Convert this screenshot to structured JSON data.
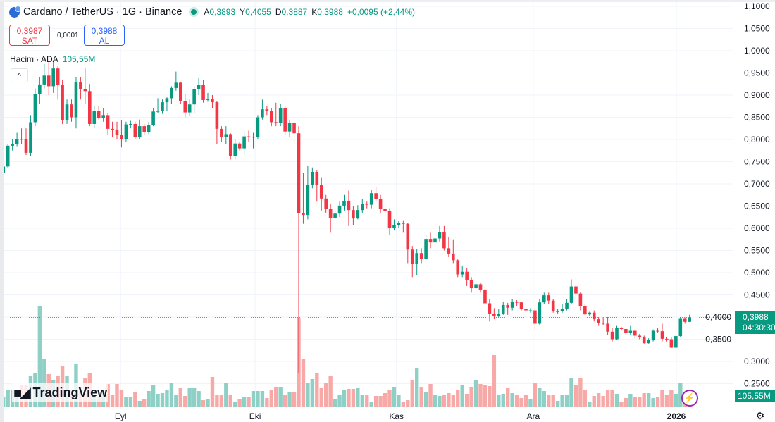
{
  "header": {
    "title": "Cardano / TetherUS · 1G · Binance",
    "ohlc": [
      {
        "label": "A",
        "value": "0,3893"
      },
      {
        "label": "Y",
        "value": "0,4055"
      },
      {
        "label": "D",
        "value": "0,3887"
      },
      {
        "label": "K",
        "value": "0,3988"
      }
    ],
    "change": "+0,0095 (+2,44%)"
  },
  "trade": {
    "sell_price": "0,3987",
    "sell_label": "SAT",
    "spread": "0,0001",
    "buy_price": "0,3988",
    "buy_label": "AL"
  },
  "volume_legend": {
    "label": "Hacim · ADA",
    "value": "105,55M"
  },
  "collapse_icon": "^",
  "brand": {
    "mark": "TV",
    "name": "TradingView"
  },
  "last_price_tag": {
    "price": "0,3988",
    "countdown": "04:30:30"
  },
  "volume_tag": "105,55M",
  "colors": {
    "up": "#089981",
    "down": "#f23645",
    "up_volume": "#8fd0c6",
    "down_volume": "#f7a9a7",
    "grid": "#f0f3fa"
  },
  "icons": {
    "lightning": "lightning-icon",
    "settings": "gear-icon",
    "logo": "cardano-logo-icon"
  },
  "chart_data": {
    "type": "candlestick",
    "title": "Cardano / TetherUS · 1G · Binance",
    "ylim": [
      0.25,
      1.1
    ],
    "y_ticks": [
      "1,1000",
      "1,0500",
      "1,0000",
      "0,9500",
      "0,9000",
      "0,8500",
      "0,8000",
      "0,7500",
      "0,7000",
      "0,6500",
      "0,6000",
      "0,5500",
      "0,5000",
      "0,4500",
      "0,4000",
      "0,3500",
      "0,3000",
      "0,2500"
    ],
    "y_tick_values": [
      1.1,
      1.05,
      1.0,
      0.95,
      0.9,
      0.85,
      0.8,
      0.75,
      0.7,
      0.65,
      0.6,
      0.55,
      0.5,
      0.45,
      0.4,
      0.35,
      0.3,
      0.25
    ],
    "x_ticks": [
      {
        "label": "Eyl",
        "candle": 26.8
      },
      {
        "label": "Eki",
        "candle": 56.4
      },
      {
        "label": "Kas",
        "candle": 87.5
      },
      {
        "label": "Ara",
        "candle": 117.6
      },
      {
        "label": "2026",
        "candle": 149.1,
        "bold": true
      }
    ],
    "last_price": 0.3988,
    "grid": true,
    "candles_ohlc": [
      [
        0.725,
        0.745,
        0.718,
        0.739
      ],
      [
        0.739,
        0.79,
        0.735,
        0.786
      ],
      [
        0.786,
        0.8,
        0.775,
        0.789
      ],
      [
        0.789,
        0.815,
        0.785,
        0.801
      ],
      [
        0.801,
        0.825,
        0.79,
        0.8
      ],
      [
        0.8,
        0.825,
        0.765,
        0.77
      ],
      [
        0.77,
        0.855,
        0.762,
        0.839
      ],
      [
        0.839,
        0.915,
        0.83,
        0.903
      ],
      [
        0.903,
        0.94,
        0.88,
        0.924
      ],
      [
        0.924,
        0.97,
        0.915,
        0.944
      ],
      [
        0.944,
        0.975,
        0.9,
        0.92
      ],
      [
        0.92,
        0.975,
        0.905,
        0.96
      ],
      [
        0.96,
        0.965,
        0.89,
        0.923
      ],
      [
        0.923,
        0.935,
        0.835,
        0.844
      ],
      [
        0.844,
        0.89,
        0.835,
        0.879
      ],
      [
        0.879,
        0.89,
        0.84,
        0.85
      ],
      [
        0.85,
        0.94,
        0.825,
        0.93
      ],
      [
        0.93,
        0.94,
        0.89,
        0.913
      ],
      [
        0.913,
        0.96,
        0.88,
        0.909
      ],
      [
        0.909,
        0.925,
        0.83,
        0.835
      ],
      [
        0.835,
        0.875,
        0.826,
        0.865
      ],
      [
        0.865,
        0.875,
        0.845,
        0.849
      ],
      [
        0.849,
        0.87,
        0.84,
        0.855
      ],
      [
        0.855,
        0.86,
        0.81,
        0.824
      ],
      [
        0.824,
        0.84,
        0.805,
        0.821
      ],
      [
        0.821,
        0.84,
        0.8,
        0.81
      ],
      [
        0.81,
        0.843,
        0.782,
        0.8
      ],
      [
        0.8,
        0.84,
        0.795,
        0.834
      ],
      [
        0.834,
        0.842,
        0.825,
        0.835
      ],
      [
        0.835,
        0.84,
        0.8,
        0.806
      ],
      [
        0.806,
        0.845,
        0.8,
        0.83
      ],
      [
        0.83,
        0.835,
        0.81,
        0.817
      ],
      [
        0.817,
        0.84,
        0.812,
        0.833
      ],
      [
        0.833,
        0.87,
        0.83,
        0.863
      ],
      [
        0.863,
        0.893,
        0.86,
        0.864
      ],
      [
        0.864,
        0.89,
        0.858,
        0.884
      ],
      [
        0.884,
        0.895,
        0.865,
        0.893
      ],
      [
        0.893,
        0.92,
        0.88,
        0.916
      ],
      [
        0.916,
        0.953,
        0.91,
        0.928
      ],
      [
        0.928,
        0.93,
        0.88,
        0.887
      ],
      [
        0.887,
        0.902,
        0.85,
        0.861
      ],
      [
        0.861,
        0.89,
        0.853,
        0.879
      ],
      [
        0.879,
        0.92,
        0.86,
        0.913
      ],
      [
        0.913,
        0.938,
        0.9,
        0.923
      ],
      [
        0.923,
        0.935,
        0.883,
        0.889
      ],
      [
        0.889,
        0.905,
        0.885,
        0.891
      ],
      [
        0.891,
        0.9,
        0.87,
        0.884
      ],
      [
        0.884,
        0.886,
        0.79,
        0.824
      ],
      [
        0.824,
        0.83,
        0.795,
        0.805
      ],
      [
        0.805,
        0.83,
        0.79,
        0.812
      ],
      [
        0.812,
        0.814,
        0.755,
        0.762
      ],
      [
        0.762,
        0.8,
        0.755,
        0.791
      ],
      [
        0.791,
        0.795,
        0.775,
        0.78
      ],
      [
        0.78,
        0.818,
        0.765,
        0.807
      ],
      [
        0.807,
        0.82,
        0.795,
        0.805
      ],
      [
        0.805,
        0.815,
        0.78,
        0.806
      ],
      [
        0.806,
        0.855,
        0.8,
        0.85
      ],
      [
        0.85,
        0.89,
        0.845,
        0.868
      ],
      [
        0.868,
        0.875,
        0.855,
        0.865
      ],
      [
        0.865,
        0.87,
        0.83,
        0.839
      ],
      [
        0.839,
        0.883,
        0.83,
        0.837
      ],
      [
        0.837,
        0.88,
        0.83,
        0.871
      ],
      [
        0.871,
        0.876,
        0.81,
        0.818
      ],
      [
        0.818,
        0.845,
        0.805,
        0.838
      ],
      [
        0.838,
        0.84,
        0.79,
        0.814
      ],
      [
        0.814,
        0.83,
        0.273,
        0.634
      ],
      [
        0.634,
        0.725,
        0.61,
        0.63
      ],
      [
        0.63,
        0.74,
        0.62,
        0.697
      ],
      [
        0.697,
        0.737,
        0.69,
        0.727
      ],
      [
        0.727,
        0.73,
        0.66,
        0.697
      ],
      [
        0.697,
        0.715,
        0.64,
        0.667
      ],
      [
        0.667,
        0.675,
        0.635,
        0.643
      ],
      [
        0.643,
        0.655,
        0.59,
        0.623
      ],
      [
        0.623,
        0.64,
        0.62,
        0.633
      ],
      [
        0.633,
        0.66,
        0.625,
        0.651
      ],
      [
        0.651,
        0.675,
        0.64,
        0.662
      ],
      [
        0.662,
        0.685,
        0.605,
        0.641
      ],
      [
        0.641,
        0.65,
        0.607,
        0.622
      ],
      [
        0.622,
        0.652,
        0.62,
        0.641
      ],
      [
        0.641,
        0.665,
        0.635,
        0.655
      ],
      [
        0.655,
        0.66,
        0.645,
        0.653
      ],
      [
        0.653,
        0.687,
        0.645,
        0.679
      ],
      [
        0.679,
        0.693,
        0.66,
        0.666
      ],
      [
        0.666,
        0.675,
        0.635,
        0.644
      ],
      [
        0.644,
        0.655,
        0.625,
        0.639
      ],
      [
        0.639,
        0.645,
        0.585,
        0.6
      ],
      [
        0.6,
        0.62,
        0.595,
        0.607
      ],
      [
        0.607,
        0.617,
        0.6,
        0.612
      ],
      [
        0.612,
        0.618,
        0.59,
        0.61
      ],
      [
        0.61,
        0.612,
        0.52,
        0.552
      ],
      [
        0.552,
        0.56,
        0.49,
        0.519
      ],
      [
        0.519,
        0.553,
        0.495,
        0.544
      ],
      [
        0.544,
        0.555,
        0.52,
        0.531
      ],
      [
        0.531,
        0.585,
        0.528,
        0.576
      ],
      [
        0.576,
        0.59,
        0.555,
        0.568
      ],
      [
        0.568,
        0.58,
        0.545,
        0.577
      ],
      [
        0.577,
        0.605,
        0.57,
        0.592
      ],
      [
        0.592,
        0.605,
        0.55,
        0.555
      ],
      [
        0.555,
        0.58,
        0.535,
        0.543
      ],
      [
        0.543,
        0.575,
        0.52,
        0.528
      ],
      [
        0.528,
        0.53,
        0.49,
        0.496
      ],
      [
        0.496,
        0.515,
        0.49,
        0.502
      ],
      [
        0.502,
        0.51,
        0.47,
        0.484
      ],
      [
        0.484,
        0.49,
        0.455,
        0.465
      ],
      [
        0.465,
        0.48,
        0.458,
        0.474
      ],
      [
        0.474,
        0.478,
        0.455,
        0.462
      ],
      [
        0.462,
        0.47,
        0.425,
        0.431
      ],
      [
        0.431,
        0.44,
        0.39,
        0.408
      ],
      [
        0.408,
        0.42,
        0.395,
        0.403
      ],
      [
        0.403,
        0.418,
        0.4,
        0.408
      ],
      [
        0.408,
        0.435,
        0.405,
        0.427
      ],
      [
        0.427,
        0.432,
        0.405,
        0.421
      ],
      [
        0.421,
        0.44,
        0.415,
        0.434
      ],
      [
        0.434,
        0.438,
        0.425,
        0.433
      ],
      [
        0.433,
        0.435,
        0.415,
        0.419
      ],
      [
        0.419,
        0.425,
        0.412,
        0.415
      ],
      [
        0.415,
        0.42,
        0.41,
        0.415
      ],
      [
        0.415,
        0.42,
        0.37,
        0.385
      ],
      [
        0.385,
        0.44,
        0.383,
        0.433
      ],
      [
        0.433,
        0.455,
        0.43,
        0.449
      ],
      [
        0.449,
        0.455,
        0.43,
        0.437
      ],
      [
        0.437,
        0.44,
        0.41,
        0.413
      ],
      [
        0.413,
        0.418,
        0.408,
        0.413
      ],
      [
        0.413,
        0.43,
        0.41,
        0.419
      ],
      [
        0.419,
        0.44,
        0.415,
        0.432
      ],
      [
        0.432,
        0.485,
        0.43,
        0.469
      ],
      [
        0.469,
        0.475,
        0.44,
        0.453
      ],
      [
        0.453,
        0.456,
        0.415,
        0.424
      ],
      [
        0.424,
        0.43,
        0.405,
        0.406
      ],
      [
        0.406,
        0.412,
        0.402,
        0.41
      ],
      [
        0.41,
        0.415,
        0.39,
        0.395
      ],
      [
        0.395,
        0.4,
        0.38,
        0.387
      ],
      [
        0.387,
        0.4,
        0.382,
        0.385
      ],
      [
        0.385,
        0.4,
        0.36,
        0.367
      ],
      [
        0.367,
        0.375,
        0.345,
        0.35
      ],
      [
        0.35,
        0.38,
        0.348,
        0.376
      ],
      [
        0.376,
        0.378,
        0.37,
        0.373
      ],
      [
        0.373,
        0.377,
        0.36,
        0.364
      ],
      [
        0.364,
        0.38,
        0.36,
        0.369
      ],
      [
        0.369,
        0.372,
        0.352,
        0.358
      ],
      [
        0.358,
        0.362,
        0.35,
        0.355
      ],
      [
        0.355,
        0.358,
        0.34,
        0.341
      ],
      [
        0.341,
        0.352,
        0.34,
        0.348
      ],
      [
        0.348,
        0.372,
        0.345,
        0.369
      ],
      [
        0.369,
        0.375,
        0.365,
        0.368
      ],
      [
        0.368,
        0.385,
        0.345,
        0.351
      ],
      [
        0.351,
        0.355,
        0.345,
        0.35
      ],
      [
        0.35,
        0.355,
        0.33,
        0.331
      ],
      [
        0.331,
        0.36,
        0.33,
        0.357
      ],
      [
        0.357,
        0.4,
        0.355,
        0.396
      ],
      [
        0.396,
        0.399,
        0.385,
        0.3893
      ],
      [
        0.3893,
        0.4055,
        0.3887,
        0.3988
      ]
    ],
    "volume_millions": [
      260,
      460,
      460,
      400,
      620,
      620,
      860,
      940,
      2860,
      1340,
      920,
      760,
      880,
      1140,
      860,
      460,
      1200,
      540,
      820,
      940,
      340,
      260,
      400,
      640,
      340,
      640,
      460,
      260,
      260,
      420,
      160,
      220,
      440,
      600,
      360,
      380,
      460,
      660,
      340,
      520,
      300,
      520,
      520,
      440,
      180,
      220,
      840,
      320,
      320,
      680,
      340,
      140,
      220,
      260,
      280,
      440,
      440,
      440,
      240,
      460,
      560,
      560,
      340,
      420,
      420,
      2500,
      1340,
      680,
      780,
      940,
      520,
      660,
      860,
      200,
      340,
      460,
      500,
      500,
      520,
      320,
      320,
      140,
      300,
      300,
      380,
      460,
      540,
      320,
      140,
      180,
      760,
      1080,
      540,
      400,
      640,
      320,
      300,
      340,
      380,
      320,
      480,
      620,
      360,
      560,
      740,
      640,
      600,
      580,
      1460,
      320,
      360,
      520,
      380,
      320,
      240,
      340,
      200,
      680,
      520,
      440,
      340,
      340,
      160,
      340,
      340,
      820,
      600,
      820,
      460,
      140,
      300,
      380,
      300,
      460,
      480,
      360,
      140,
      240,
      360,
      280,
      280,
      380,
      380,
      240,
      280,
      480,
      320,
      460,
      360,
      680,
      100,
      105.55
    ]
  }
}
